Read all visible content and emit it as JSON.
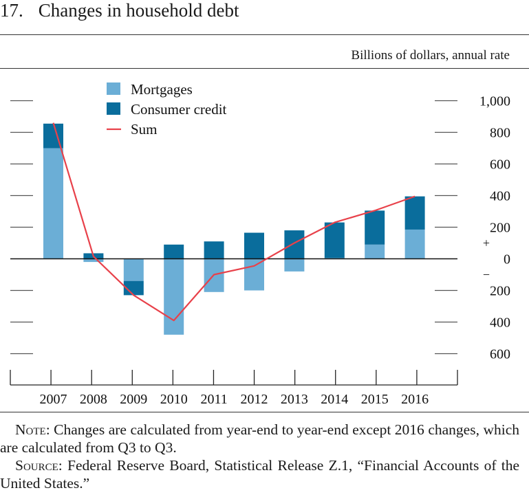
{
  "figure": {
    "number": "17.",
    "title": "Changes in household debt",
    "units": "Billions of dollars, annual rate"
  },
  "chart_data": {
    "type": "bar",
    "stacked": true,
    "categories": [
      "2007",
      "2008",
      "2009",
      "2010",
      "2011",
      "2012",
      "2013",
      "2014",
      "2015",
      "2016"
    ],
    "series": [
      {
        "name": "Mortgages",
        "type": "bar",
        "color": "#6baed6",
        "values": [
          700,
          -20,
          -140,
          -480,
          -210,
          -200,
          -80,
          5,
          90,
          185
        ]
      },
      {
        "name": "Consumer credit",
        "type": "bar",
        "color": "#0a6d9c",
        "values": [
          155,
          35,
          -90,
          90,
          110,
          165,
          180,
          225,
          215,
          210
        ]
      },
      {
        "name": "Sum",
        "type": "line",
        "color": "#e8414a",
        "values": [
          860,
          15,
          -230,
          -390,
          -100,
          -45,
          100,
          230,
          305,
          395
        ]
      }
    ],
    "yaxis": {
      "ylim": [
        -700,
        1000
      ],
      "ticks": [
        1000,
        800,
        600,
        400,
        200,
        0,
        -200,
        -400,
        -600
      ],
      "tick_labels": [
        "1,000",
        "800",
        "600",
        "400",
        "200",
        "0",
        "200",
        "400",
        "600"
      ],
      "plus_sign": "+",
      "minus_sign": "−"
    },
    "grid": false,
    "legend_position": "top-left"
  },
  "note": {
    "label": "Note",
    "text": ": Changes are calculated from year-end to year-end except 2016 changes, which are calculated from Q3 to Q3."
  },
  "source": {
    "label": "Source",
    "text": ": Federal Reserve Board, Statistical Release Z.1, “Financial Accounts of the United States.”"
  }
}
